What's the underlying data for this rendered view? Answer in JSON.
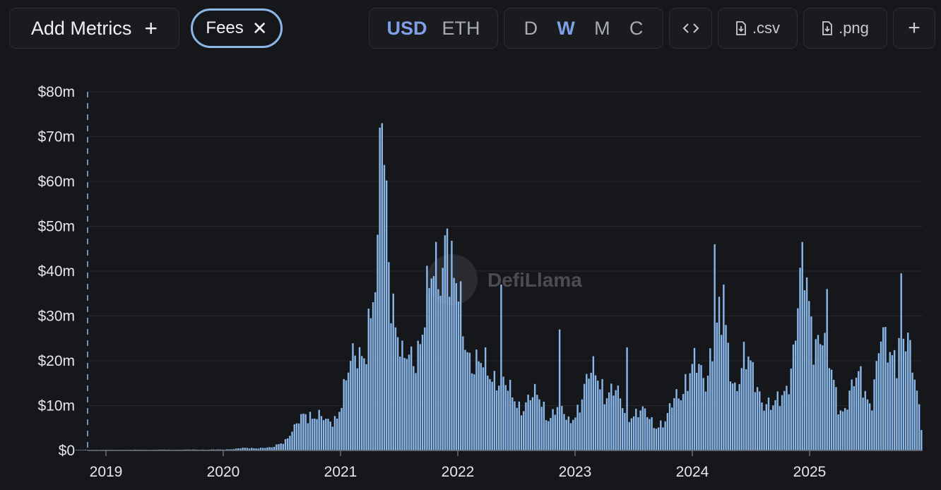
{
  "toolbar": {
    "add_metrics_label": "Add Metrics",
    "add_icon": "plus-icon",
    "metric_pill": {
      "label": "Fees",
      "close_icon": "close-icon"
    },
    "currency": {
      "options": [
        "USD",
        "ETH"
      ],
      "selected": "USD"
    },
    "interval": {
      "options": [
        "D",
        "W",
        "M",
        "C"
      ],
      "selected": "W"
    },
    "embed_icon": "code-icon",
    "csv_label": ".csv",
    "png_label": ".png",
    "download_icon": "download-file-icon",
    "extra_add_icon": "plus-icon"
  },
  "watermark": "DefiLlama",
  "colors": {
    "background": "#16171b",
    "bar": "#8ab8ea",
    "accent": "#7ea0e8",
    "grid": "#25272c"
  },
  "chart_data": {
    "type": "bar",
    "title": "",
    "xlabel": "",
    "ylabel": "",
    "ylim": [
      0,
      80
    ],
    "y_unit": "$m",
    "y_ticks": [
      "$0",
      "$10m",
      "$20m",
      "$30m",
      "$40m",
      "$50m",
      "$60m",
      "$70m",
      "$80m"
    ],
    "y_tick_values": [
      0,
      10,
      20,
      30,
      40,
      50,
      60,
      70,
      80
    ],
    "x_ticks": [
      "2019",
      "2020",
      "2021",
      "2022",
      "2023",
      "2024",
      "2025"
    ],
    "x_start": "2018-10",
    "x_end": "2025-12",
    "grid": true,
    "interval": "weekly",
    "series_anchors": [
      [
        "2018-10-01",
        0.1
      ],
      [
        "2019-12-31",
        0.2
      ],
      [
        "2020-03-01",
        0.5
      ],
      [
        "2020-06-01",
        0.6
      ],
      [
        "2020-07-15",
        2.5
      ],
      [
        "2020-08-15",
        5
      ],
      [
        "2020-09-15",
        9
      ],
      [
        "2020-10-20",
        7.5
      ],
      [
        "2020-11-20",
        6
      ],
      [
        "2020-12-20",
        8
      ],
      [
        "2021-01-20",
        15
      ],
      [
        "2021-02-20",
        22
      ],
      [
        "2021-03-20",
        25
      ],
      [
        "2021-04-20",
        33
      ],
      [
        "2021-05-10",
        45
      ],
      [
        "2021-05-20",
        70
      ],
      [
        "2021-06-10",
        35
      ],
      [
        "2021-07-10",
        18
      ],
      [
        "2021-08-10",
        22
      ],
      [
        "2021-09-10",
        26
      ],
      [
        "2021-10-10",
        35
      ],
      [
        "2021-11-10",
        45
      ],
      [
        "2021-12-10",
        38
      ],
      [
        "2022-01-10",
        30
      ],
      [
        "2022-02-10",
        22
      ],
      [
        "2022-03-10",
        18
      ],
      [
        "2022-04-10",
        17
      ],
      [
        "2022-05-10",
        18
      ],
      [
        "2022-06-10",
        12
      ],
      [
        "2022-07-10",
        10
      ],
      [
        "2022-08-10",
        12
      ],
      [
        "2022-09-10",
        11
      ],
      [
        "2022-10-10",
        8
      ],
      [
        "2022-11-10",
        10
      ],
      [
        "2022-12-10",
        6
      ],
      [
        "2023-01-10",
        10
      ],
      [
        "2023-02-10",
        15
      ],
      [
        "2023-03-10",
        18
      ],
      [
        "2023-04-10",
        13
      ],
      [
        "2023-05-10",
        12
      ],
      [
        "2023-06-10",
        9
      ],
      [
        "2023-07-10",
        8
      ],
      [
        "2023-08-10",
        8
      ],
      [
        "2023-09-10",
        6
      ],
      [
        "2023-10-10",
        6
      ],
      [
        "2023-11-10",
        12
      ],
      [
        "2023-12-10",
        16
      ],
      [
        "2024-01-10",
        18
      ],
      [
        "2024-02-10",
        16
      ],
      [
        "2024-03-10",
        28
      ],
      [
        "2024-04-10",
        26
      ],
      [
        "2024-05-10",
        15
      ],
      [
        "2024-06-10",
        20
      ],
      [
        "2024-07-10",
        16
      ],
      [
        "2024-08-10",
        12
      ],
      [
        "2024-09-10",
        9
      ],
      [
        "2024-10-10",
        12
      ],
      [
        "2024-11-10",
        22
      ],
      [
        "2024-12-10",
        40
      ],
      [
        "2025-01-10",
        28
      ],
      [
        "2025-02-10",
        26
      ],
      [
        "2025-03-10",
        16
      ],
      [
        "2025-04-10",
        9
      ],
      [
        "2025-05-10",
        13
      ],
      [
        "2025-06-10",
        16
      ],
      [
        "2025-07-10",
        11
      ],
      [
        "2025-08-10",
        23
      ],
      [
        "2025-09-10",
        22
      ],
      [
        "2025-10-10",
        26
      ],
      [
        "2025-11-10",
        20
      ],
      [
        "2025-12-05",
        12
      ],
      [
        "2025-12-25",
        2
      ]
    ],
    "series_spikes": [
      [
        "2021-05-13",
        73
      ],
      [
        "2021-05-06",
        72
      ],
      [
        "2021-11-27",
        49.5
      ],
      [
        "2021-11-20",
        48
      ],
      [
        "2022-05-15",
        37
      ],
      [
        "2022-11-12",
        27
      ],
      [
        "2023-06-15",
        23
      ],
      [
        "2024-03-13",
        46
      ],
      [
        "2024-04-08",
        37
      ],
      [
        "2024-12-08",
        46.5
      ],
      [
        "2025-02-25",
        36
      ],
      [
        "2025-10-13",
        39.5
      ]
    ]
  }
}
